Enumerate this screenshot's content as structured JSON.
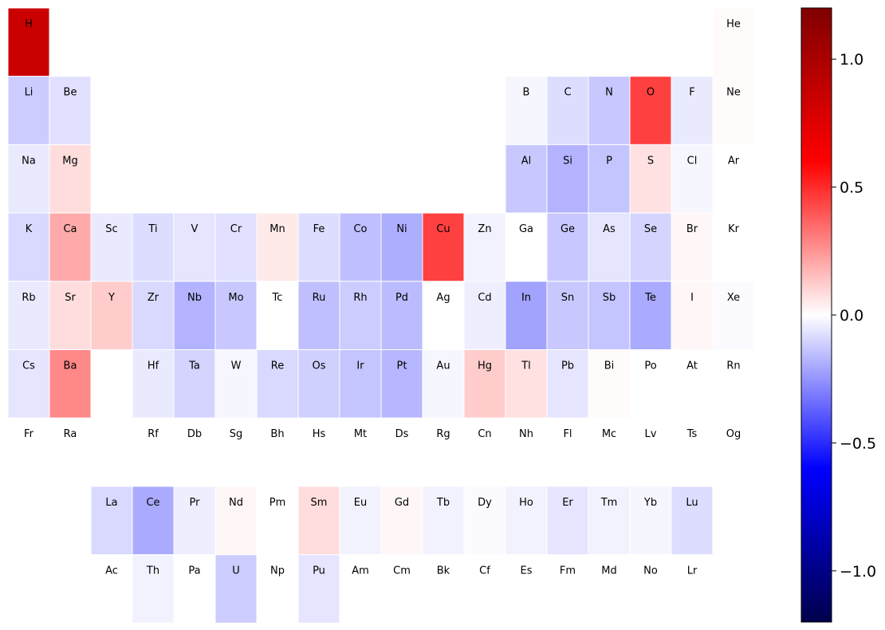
{
  "chart_data": {
    "type": "heatmap",
    "title": "",
    "colormap": "seismic",
    "vmin": -1.2,
    "vmax": 1.2,
    "colorbar_ticks": [
      -1.0,
      -0.5,
      0.0,
      0.5,
      1.0
    ],
    "colorbar_tick_labels": [
      "−1.0",
      "−0.5",
      "0.0",
      "0.5",
      "1.0"
    ],
    "elements": [
      {
        "symbol": "H",
        "row": 1,
        "col": 1,
        "value": 0.85
      },
      {
        "symbol": "He",
        "row": 1,
        "col": 18,
        "value": 0.01
      },
      {
        "symbol": "Li",
        "row": 2,
        "col": 1,
        "value": -0.12
      },
      {
        "symbol": "Be",
        "row": 2,
        "col": 2,
        "value": -0.07
      },
      {
        "symbol": "B",
        "row": 2,
        "col": 13,
        "value": -0.02
      },
      {
        "symbol": "C",
        "row": 2,
        "col": 14,
        "value": -0.08
      },
      {
        "symbol": "N",
        "row": 2,
        "col": 15,
        "value": -0.13
      },
      {
        "symbol": "O",
        "row": 2,
        "col": 16,
        "value": 0.45
      },
      {
        "symbol": "F",
        "row": 2,
        "col": 17,
        "value": -0.05
      },
      {
        "symbol": "Ne",
        "row": 2,
        "col": 18,
        "value": 0.01
      },
      {
        "symbol": "Na",
        "row": 3,
        "col": 1,
        "value": -0.05
      },
      {
        "symbol": "Mg",
        "row": 3,
        "col": 2,
        "value": 0.08
      },
      {
        "symbol": "Al",
        "row": 3,
        "col": 13,
        "value": -0.13
      },
      {
        "symbol": "Si",
        "row": 3,
        "col": 14,
        "value": -0.18
      },
      {
        "symbol": "P",
        "row": 3,
        "col": 15,
        "value": -0.14
      },
      {
        "symbol": "S",
        "row": 3,
        "col": 16,
        "value": 0.07
      },
      {
        "symbol": "Cl",
        "row": 3,
        "col": 17,
        "value": -0.02
      },
      {
        "symbol": "Ar",
        "row": 3,
        "col": 18,
        "value": 0.0
      },
      {
        "symbol": "K",
        "row": 4,
        "col": 1,
        "value": -0.09
      },
      {
        "symbol": "Ca",
        "row": 4,
        "col": 2,
        "value": 0.2
      },
      {
        "symbol": "Sc",
        "row": 4,
        "col": 3,
        "value": -0.05
      },
      {
        "symbol": "Ti",
        "row": 4,
        "col": 4,
        "value": -0.08
      },
      {
        "symbol": "V",
        "row": 4,
        "col": 5,
        "value": -0.06
      },
      {
        "symbol": "Cr",
        "row": 4,
        "col": 6,
        "value": -0.07
      },
      {
        "symbol": "Mn",
        "row": 4,
        "col": 7,
        "value": 0.05
      },
      {
        "symbol": "Fe",
        "row": 4,
        "col": 8,
        "value": -0.08
      },
      {
        "symbol": "Co",
        "row": 4,
        "col": 9,
        "value": -0.15
      },
      {
        "symbol": "Ni",
        "row": 4,
        "col": 10,
        "value": -0.19
      },
      {
        "symbol": "Cu",
        "row": 4,
        "col": 11,
        "value": 0.45
      },
      {
        "symbol": "Zn",
        "row": 4,
        "col": 12,
        "value": -0.03
      },
      {
        "symbol": "Ga",
        "row": 4,
        "col": 13,
        "value": 0.0
      },
      {
        "symbol": "Ge",
        "row": 4,
        "col": 14,
        "value": -0.13
      },
      {
        "symbol": "As",
        "row": 4,
        "col": 15,
        "value": -0.06
      },
      {
        "symbol": "Se",
        "row": 4,
        "col": 16,
        "value": -0.1
      },
      {
        "symbol": "Br",
        "row": 4,
        "col": 17,
        "value": 0.02
      },
      {
        "symbol": "Kr",
        "row": 4,
        "col": 18,
        "value": 0.0
      },
      {
        "symbol": "Rb",
        "row": 5,
        "col": 1,
        "value": -0.05
      },
      {
        "symbol": "Sr",
        "row": 5,
        "col": 2,
        "value": 0.08
      },
      {
        "symbol": "Y",
        "row": 5,
        "col": 3,
        "value": 0.12
      },
      {
        "symbol": "Zr",
        "row": 5,
        "col": 4,
        "value": -0.09
      },
      {
        "symbol": "Nb",
        "row": 5,
        "col": 5,
        "value": -0.18
      },
      {
        "symbol": "Mo",
        "row": 5,
        "col": 6,
        "value": -0.13
      },
      {
        "symbol": "Tc",
        "row": 5,
        "col": 7,
        "value": 0.0
      },
      {
        "symbol": "Ru",
        "row": 5,
        "col": 8,
        "value": -0.15
      },
      {
        "symbol": "Rh",
        "row": 5,
        "col": 9,
        "value": -0.12
      },
      {
        "symbol": "Pd",
        "row": 5,
        "col": 10,
        "value": -0.16
      },
      {
        "symbol": "Ag",
        "row": 5,
        "col": 11,
        "value": 0.0
      },
      {
        "symbol": "Cd",
        "row": 5,
        "col": 12,
        "value": -0.04
      },
      {
        "symbol": "In",
        "row": 5,
        "col": 13,
        "value": -0.22
      },
      {
        "symbol": "Sn",
        "row": 5,
        "col": 14,
        "value": -0.13
      },
      {
        "symbol": "Sb",
        "row": 5,
        "col": 15,
        "value": -0.14
      },
      {
        "symbol": "Te",
        "row": 5,
        "col": 16,
        "value": -0.2
      },
      {
        "symbol": "I",
        "row": 5,
        "col": 17,
        "value": 0.02
      },
      {
        "symbol": "Xe",
        "row": 5,
        "col": 18,
        "value": -0.01
      },
      {
        "symbol": "Cs",
        "row": 6,
        "col": 1,
        "value": -0.06
      },
      {
        "symbol": "Ba",
        "row": 6,
        "col": 2,
        "value": 0.28
      },
      {
        "symbol": "Hf",
        "row": 6,
        "col": 4,
        "value": -0.05
      },
      {
        "symbol": "Ta",
        "row": 6,
        "col": 5,
        "value": -0.1
      },
      {
        "symbol": "W",
        "row": 6,
        "col": 6,
        "value": -0.02
      },
      {
        "symbol": "Re",
        "row": 6,
        "col": 7,
        "value": -0.09
      },
      {
        "symbol": "Os",
        "row": 6,
        "col": 8,
        "value": -0.11
      },
      {
        "symbol": "Ir",
        "row": 6,
        "col": 9,
        "value": -0.14
      },
      {
        "symbol": "Pt",
        "row": 6,
        "col": 10,
        "value": -0.17
      },
      {
        "symbol": "Au",
        "row": 6,
        "col": 11,
        "value": -0.02
      },
      {
        "symbol": "Hg",
        "row": 6,
        "col": 12,
        "value": 0.12
      },
      {
        "symbol": "Tl",
        "row": 6,
        "col": 13,
        "value": 0.07
      },
      {
        "symbol": "Pb",
        "row": 6,
        "col": 14,
        "value": -0.06
      },
      {
        "symbol": "Bi",
        "row": 6,
        "col": 15,
        "value": 0.01
      },
      {
        "symbol": "Po",
        "row": 6,
        "col": 16,
        "value": 0.0
      },
      {
        "symbol": "At",
        "row": 6,
        "col": 17,
        "value": 0.0
      },
      {
        "symbol": "Rn",
        "row": 6,
        "col": 18,
        "value": 0.0
      },
      {
        "symbol": "Fr",
        "row": 7,
        "col": 1,
        "value": 0.0
      },
      {
        "symbol": "Ra",
        "row": 7,
        "col": 2,
        "value": 0.0
      },
      {
        "symbol": "Rf",
        "row": 7,
        "col": 4,
        "value": 0.0
      },
      {
        "symbol": "Db",
        "row": 7,
        "col": 5,
        "value": 0.0
      },
      {
        "symbol": "Sg",
        "row": 7,
        "col": 6,
        "value": 0.0
      },
      {
        "symbol": "Bh",
        "row": 7,
        "col": 7,
        "value": 0.0
      },
      {
        "symbol": "Hs",
        "row": 7,
        "col": 8,
        "value": 0.0
      },
      {
        "symbol": "Mt",
        "row": 7,
        "col": 9,
        "value": 0.0
      },
      {
        "symbol": "Ds",
        "row": 7,
        "col": 10,
        "value": 0.0
      },
      {
        "symbol": "Rg",
        "row": 7,
        "col": 11,
        "value": 0.0
      },
      {
        "symbol": "Cn",
        "row": 7,
        "col": 12,
        "value": 0.0
      },
      {
        "symbol": "Nh",
        "row": 7,
        "col": 13,
        "value": 0.0
      },
      {
        "symbol": "Fl",
        "row": 7,
        "col": 14,
        "value": 0.0
      },
      {
        "symbol": "Mc",
        "row": 7,
        "col": 15,
        "value": 0.0
      },
      {
        "symbol": "Lv",
        "row": 7,
        "col": 16,
        "value": 0.0
      },
      {
        "symbol": "Ts",
        "row": 7,
        "col": 17,
        "value": 0.0
      },
      {
        "symbol": "Og",
        "row": 7,
        "col": 18,
        "value": 0.0
      },
      {
        "symbol": "La",
        "row": 8,
        "col": 3,
        "value": -0.09
      },
      {
        "symbol": "Ce",
        "row": 8,
        "col": 4,
        "value": -0.2
      },
      {
        "symbol": "Pr",
        "row": 8,
        "col": 5,
        "value": -0.04
      },
      {
        "symbol": "Nd",
        "row": 8,
        "col": 6,
        "value": 0.02
      },
      {
        "symbol": "Pm",
        "row": 8,
        "col": 7,
        "value": 0.0
      },
      {
        "symbol": "Sm",
        "row": 8,
        "col": 8,
        "value": 0.08
      },
      {
        "symbol": "Eu",
        "row": 8,
        "col": 9,
        "value": -0.03
      },
      {
        "symbol": "Gd",
        "row": 8,
        "col": 10,
        "value": 0.02
      },
      {
        "symbol": "Tb",
        "row": 8,
        "col": 11,
        "value": -0.03
      },
      {
        "symbol": "Dy",
        "row": 8,
        "col": 12,
        "value": -0.01
      },
      {
        "symbol": "Ho",
        "row": 8,
        "col": 13,
        "value": -0.03
      },
      {
        "symbol": "Er",
        "row": 8,
        "col": 14,
        "value": -0.06
      },
      {
        "symbol": "Tm",
        "row": 8,
        "col": 15,
        "value": -0.03
      },
      {
        "symbol": "Yb",
        "row": 8,
        "col": 16,
        "value": -0.02
      },
      {
        "symbol": "Lu",
        "row": 8,
        "col": 17,
        "value": -0.08
      },
      {
        "symbol": "Ac",
        "row": 9,
        "col": 3,
        "value": 0.0
      },
      {
        "symbol": "Th",
        "row": 9,
        "col": 4,
        "value": -0.03
      },
      {
        "symbol": "Pa",
        "row": 9,
        "col": 5,
        "value": 0.0
      },
      {
        "symbol": "U",
        "row": 9,
        "col": 6,
        "value": -0.12
      },
      {
        "symbol": "Np",
        "row": 9,
        "col": 7,
        "value": 0.0
      },
      {
        "symbol": "Pu",
        "row": 9,
        "col": 8,
        "value": -0.06
      },
      {
        "symbol": "Am",
        "row": 9,
        "col": 9,
        "value": 0.0
      },
      {
        "symbol": "Cm",
        "row": 9,
        "col": 10,
        "value": 0.0
      },
      {
        "symbol": "Bk",
        "row": 9,
        "col": 11,
        "value": 0.0
      },
      {
        "symbol": "Cf",
        "row": 9,
        "col": 12,
        "value": 0.0
      },
      {
        "symbol": "Es",
        "row": 9,
        "col": 13,
        "value": 0.0
      },
      {
        "symbol": "Fm",
        "row": 9,
        "col": 14,
        "value": 0.0
      },
      {
        "symbol": "Md",
        "row": 9,
        "col": 15,
        "value": 0.0
      },
      {
        "symbol": "No",
        "row": 9,
        "col": 16,
        "value": 0.0
      },
      {
        "symbol": "Lr",
        "row": 9,
        "col": 17,
        "value": 0.0
      }
    ]
  }
}
